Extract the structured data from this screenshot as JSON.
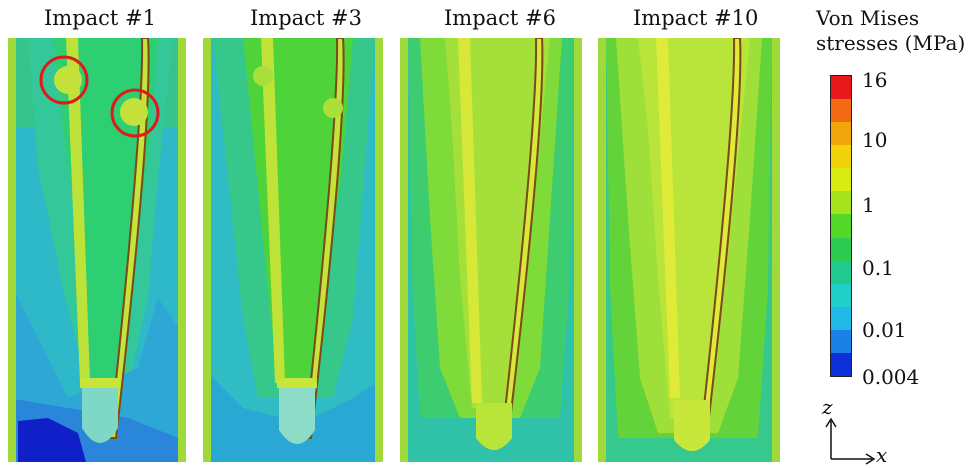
{
  "panels": [
    {
      "title": "Impact #1"
    },
    {
      "title": "Impact #3"
    },
    {
      "title": "Impact #6"
    },
    {
      "title": "Impact #10"
    }
  ],
  "legend": {
    "title_line1": "Von Mises",
    "title_line2": "stresses (MPa)",
    "tick_labels": [
      "16",
      "10",
      "1",
      "0.1",
      "0.01",
      "0.004"
    ],
    "colors": [
      "#e8181a",
      "#f26a12",
      "#f1a60c",
      "#efd20a",
      "#d9ec12",
      "#a8e41d",
      "#55d82a",
      "#2ecb52",
      "#22c98e",
      "#1fd1c8",
      "#21b8e8",
      "#1a82e6",
      "#0c2fd8"
    ]
  },
  "axes": {
    "z_label": "z",
    "x_label": "x"
  }
}
